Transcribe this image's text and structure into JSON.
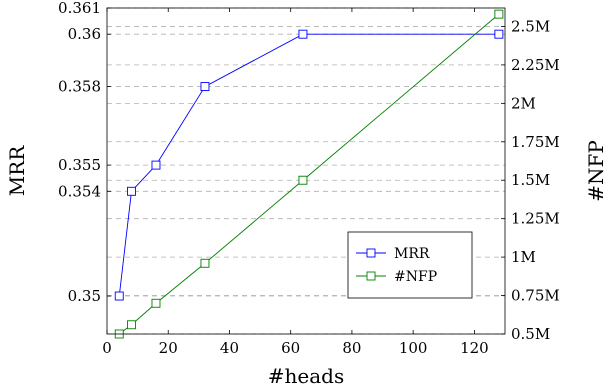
{
  "chart_data": {
    "type": "line",
    "xlabel": "#heads",
    "ylabel_left": "MRR",
    "ylabel_right": "#NFP",
    "x_ticks": [
      0,
      20,
      40,
      60,
      80,
      100,
      120
    ],
    "xlim": [
      0,
      130
    ],
    "ylim_left": [
      0.34855,
      0.361
    ],
    "ylim_right": [
      0.5,
      2.62
    ],
    "y_ticks_left": [
      0.35,
      0.354,
      0.355,
      0.358,
      0.36,
      0.361
    ],
    "y_tick_labels_left": [
      "0.35",
      "0.354",
      "0.355",
      "0.358",
      "0.36",
      "0.361"
    ],
    "y_ticks_right": [
      0.5,
      0.75,
      1.0,
      1.25,
      1.5,
      1.75,
      2.0,
      2.25,
      2.5
    ],
    "y_tick_labels_right": [
      "0.5M",
      "0.75M",
      "1M",
      "1.25M",
      "1.5M",
      "1.75M",
      "2M",
      "2.25M",
      "2.5M"
    ],
    "grid": "horizontal-dashed",
    "legend_position": "bottom-right",
    "series": [
      {
        "name": "MRR",
        "axis": "left",
        "color": "#0000ff",
        "marker": "square",
        "x": [
          4,
          8,
          16,
          32,
          64,
          128
        ],
        "y": [
          0.35,
          0.354,
          0.355,
          0.358,
          0.36,
          0.36
        ]
      },
      {
        "name": "#NFP",
        "axis": "right",
        "color": "#008000",
        "marker": "square",
        "x": [
          4,
          8,
          16,
          32,
          64,
          128
        ],
        "y": [
          0.5,
          0.56,
          0.7,
          0.96,
          1.5,
          2.58
        ]
      }
    ]
  }
}
